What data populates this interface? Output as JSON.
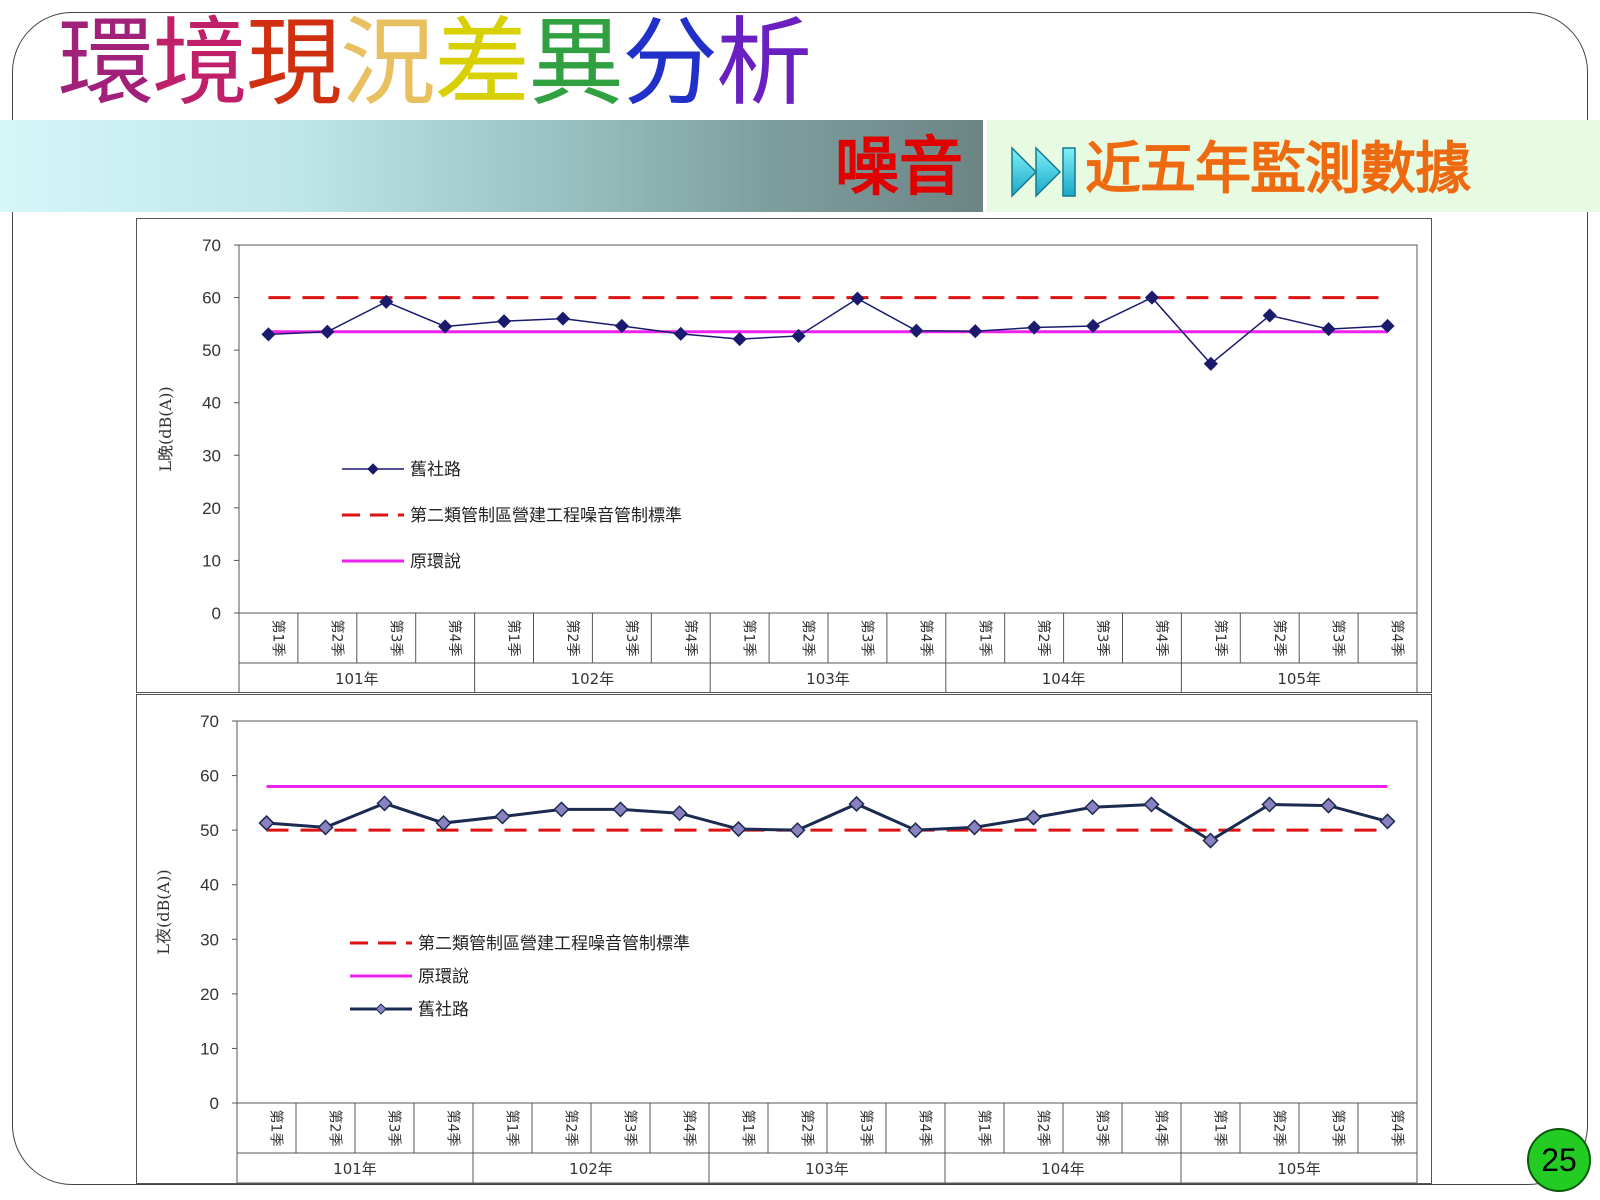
{
  "title_chars": [
    {
      "ch": "環",
      "color": "#a0207a"
    },
    {
      "ch": "境",
      "color": "#c0206a"
    },
    {
      "ch": "現",
      "color": "#d03010"
    },
    {
      "ch": "況",
      "color": "#e8c060"
    },
    {
      "ch": "差",
      "color": "#d8d000"
    },
    {
      "ch": "異",
      "color": "#30a040"
    },
    {
      "ch": "分",
      "color": "#2030c8"
    },
    {
      "ch": "析",
      "color": "#6a20c0"
    }
  ],
  "subject": "噪音",
  "subtitle": "近五年監測數據",
  "page_number": "25",
  "chart_data": [
    {
      "type": "line",
      "ylabel": "L晚(dB(A))",
      "ylim": [
        0,
        70
      ],
      "yticks": [
        0,
        10,
        20,
        30,
        40,
        50,
        60,
        70
      ],
      "categories": [
        "第1季",
        "第2季",
        "第3季",
        "第4季",
        "第1季",
        "第2季",
        "第3季",
        "第4季",
        "第1季",
        "第2季",
        "第3季",
        "第4季",
        "第1季",
        "第2季",
        "第3季",
        "第4季",
        "第1季",
        "第2季",
        "第3季",
        "第4季"
      ],
      "groups": [
        "101年",
        "102年",
        "103年",
        "104年",
        "105年"
      ],
      "series": [
        {
          "name": "舊社路",
          "style": "marker",
          "color": "#1a1a6e",
          "values": [
            53.0,
            53.5,
            59.2,
            54.5,
            55.5,
            56.0,
            54.6,
            53.1,
            52.1,
            52.7,
            59.8,
            53.7,
            53.6,
            54.3,
            54.6,
            60.0,
            47.4,
            56.6,
            54.0,
            54.6
          ]
        },
        {
          "name": "第二類管制區營建工程噪音管制標準",
          "style": "dashed",
          "color": "#dd1111",
          "values": [
            60,
            60,
            60,
            60,
            60,
            60,
            60,
            60,
            60,
            60,
            60,
            60,
            60,
            60,
            60,
            60,
            60,
            60,
            60,
            60
          ]
        },
        {
          "name": "原環說",
          "style": "solid",
          "color": "#ee22ee",
          "values": [
            53.5,
            53.5,
            53.5,
            53.5,
            53.5,
            53.5,
            53.5,
            53.5,
            53.5,
            53.5,
            53.5,
            53.5,
            53.5,
            53.5,
            53.5,
            53.5,
            53.5,
            53.5,
            53.5,
            53.5
          ]
        }
      ],
      "legend_order": [
        0,
        1,
        2
      ],
      "legend_position": "left-middle"
    },
    {
      "type": "line",
      "ylabel": "L夜(dB(A))",
      "ylim": [
        0,
        70
      ],
      "yticks": [
        0,
        10,
        20,
        30,
        40,
        50,
        60,
        70
      ],
      "categories": [
        "第1季",
        "第2季",
        "第3季",
        "第4季",
        "第1季",
        "第2季",
        "第3季",
        "第4季",
        "第1季",
        "第2季",
        "第3季",
        "第4季",
        "第1季",
        "第2季",
        "第3季",
        "第4季",
        "第1季",
        "第2季",
        "第3季",
        "第4季"
      ],
      "groups": [
        "101年",
        "102年",
        "103年",
        "104年",
        "105年"
      ],
      "series": [
        {
          "name": "舊社路",
          "style": "marker",
          "color": "#1a2a50",
          "values": [
            51.3,
            50.5,
            54.9,
            51.3,
            52.5,
            53.8,
            53.8,
            53.1,
            50.2,
            50.0,
            54.8,
            50.0,
            50.5,
            52.3,
            54.2,
            54.7,
            48.1,
            54.7,
            54.5,
            51.6
          ]
        },
        {
          "name": "第二類管制區營建工程噪音管制標準",
          "style": "dashed",
          "color": "#dd1111",
          "values": [
            50,
            50,
            50,
            50,
            50,
            50,
            50,
            50,
            50,
            50,
            50,
            50,
            50,
            50,
            50,
            50,
            50,
            50,
            50,
            50
          ]
        },
        {
          "name": "原環說",
          "style": "solid",
          "color": "#ee22ee",
          "values": [
            58,
            58,
            58,
            58,
            58,
            58,
            58,
            58,
            58,
            58,
            58,
            58,
            58,
            58,
            58,
            58,
            58,
            58,
            58,
            58
          ]
        }
      ],
      "legend_order": [
        1,
        2,
        0
      ],
      "legend_position": "left-middle"
    }
  ]
}
